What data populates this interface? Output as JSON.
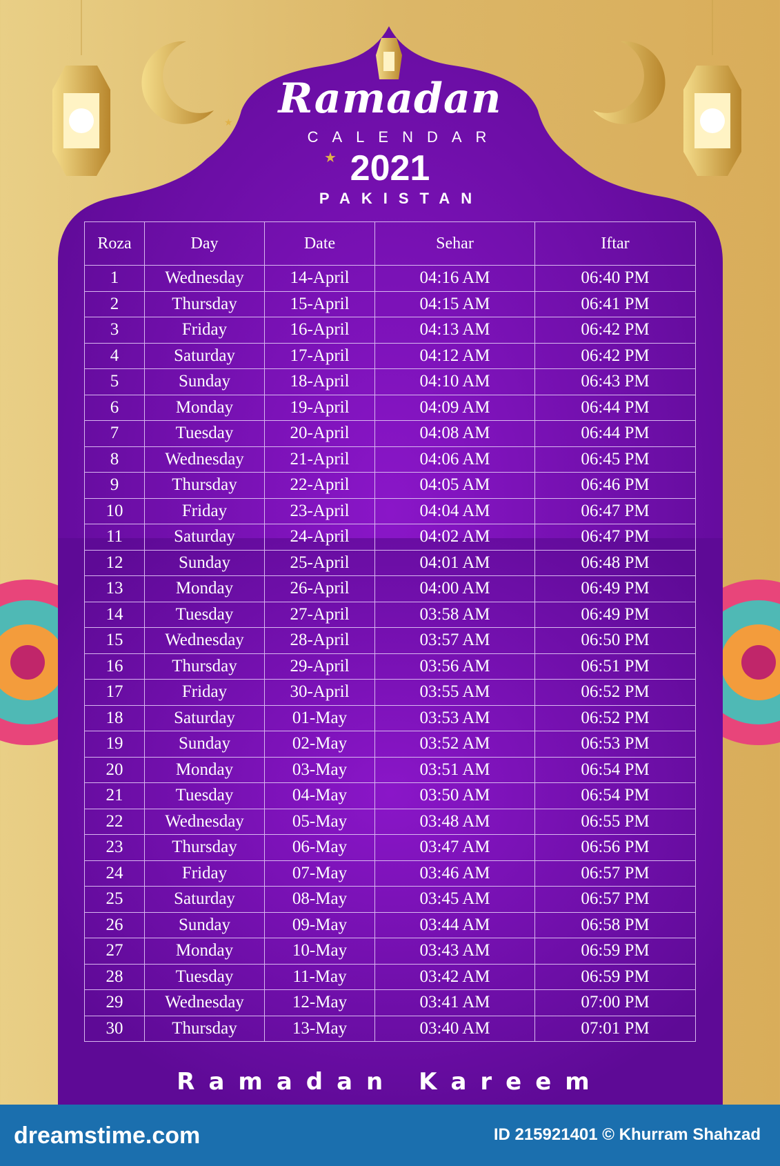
{
  "header": {
    "title": "Ramadan",
    "subtitle": "CALENDAR",
    "year": "2021",
    "country": "PAKISTAN"
  },
  "table": {
    "columns": [
      "Roza",
      "Day",
      "Date",
      "Sehar",
      "Iftar"
    ],
    "rows": [
      [
        "1",
        "Wednesday",
        "14-April",
        "04:16 AM",
        "06:40 PM"
      ],
      [
        "2",
        "Thursday",
        "15-April",
        "04:15 AM",
        "06:41 PM"
      ],
      [
        "3",
        "Friday",
        "16-April",
        "04:13 AM",
        "06:42 PM"
      ],
      [
        "4",
        "Saturday",
        "17-April",
        "04:12 AM",
        "06:42 PM"
      ],
      [
        "5",
        "Sunday",
        "18-April",
        "04:10 AM",
        "06:43 PM"
      ],
      [
        "6",
        "Monday",
        "19-April",
        "04:09 AM",
        "06:44 PM"
      ],
      [
        "7",
        "Tuesday",
        "20-April",
        "04:08 AM",
        "06:44 PM"
      ],
      [
        "8",
        "Wednesday",
        "21-April",
        "04:06 AM",
        "06:45 PM"
      ],
      [
        "9",
        "Thursday",
        "22-April",
        "04:05 AM",
        "06:46 PM"
      ],
      [
        "10",
        "Friday",
        "23-April",
        "04:04 AM",
        "06:47 PM"
      ],
      [
        "11",
        "Saturday",
        "24-April",
        "04:02 AM",
        "06:47 PM"
      ],
      [
        "12",
        "Sunday",
        "25-April",
        "04:01 AM",
        "06:48 PM"
      ],
      [
        "13",
        "Monday",
        "26-April",
        "04:00 AM",
        "06:49 PM"
      ],
      [
        "14",
        "Tuesday",
        "27-April",
        "03:58 AM",
        "06:49 PM"
      ],
      [
        "15",
        "Wednesday",
        "28-April",
        "03:57 AM",
        "06:50 PM"
      ],
      [
        "16",
        "Thursday",
        "29-April",
        "03:56 AM",
        "06:51 PM"
      ],
      [
        "17",
        "Friday",
        "30-April",
        "03:55 AM",
        "06:52 PM"
      ],
      [
        "18",
        "Saturday",
        "01-May",
        "03:53 AM",
        "06:52 PM"
      ],
      [
        "19",
        "Sunday",
        "02-May",
        "03:52 AM",
        "06:53 PM"
      ],
      [
        "20",
        "Monday",
        "03-May",
        "03:51 AM",
        "06:54 PM"
      ],
      [
        "21",
        "Tuesday",
        "04-May",
        "03:50 AM",
        "06:54 PM"
      ],
      [
        "22",
        "Wednesday",
        "05-May",
        "03:48 AM",
        "06:55 PM"
      ],
      [
        "23",
        "Thursday",
        "06-May",
        "03:47 AM",
        "06:56 PM"
      ],
      [
        "24",
        "Friday",
        "07-May",
        "03:46 AM",
        "06:57 PM"
      ],
      [
        "25",
        "Saturday",
        "08-May",
        "03:45 AM",
        "06:57 PM"
      ],
      [
        "26",
        "Sunday",
        "09-May",
        "03:44 AM",
        "06:58 PM"
      ],
      [
        "27",
        "Monday",
        "10-May",
        "03:43 AM",
        "06:59 PM"
      ],
      [
        "28",
        "Tuesday",
        "11-May",
        "03:42 AM",
        "06:59 PM"
      ],
      [
        "29",
        "Wednesday",
        "12-May",
        "03:41 AM",
        "07:00 PM"
      ],
      [
        "30",
        "Thursday",
        "13-May",
        "03:40 AM",
        "07:01 PM"
      ]
    ]
  },
  "footer_text": "Ramadan Kareem",
  "watermark": {
    "brand": "dreamstime.com",
    "credit": "ID 215921401 © Khurram Shahzad"
  },
  "colors": {
    "purple": "#7a0db8",
    "gold": "#dcb768",
    "footer": "#1b6fae"
  },
  "icons": [
    "lantern-icon",
    "crescent-moon-icon",
    "mandala-ornament-icon",
    "star-icon"
  ]
}
